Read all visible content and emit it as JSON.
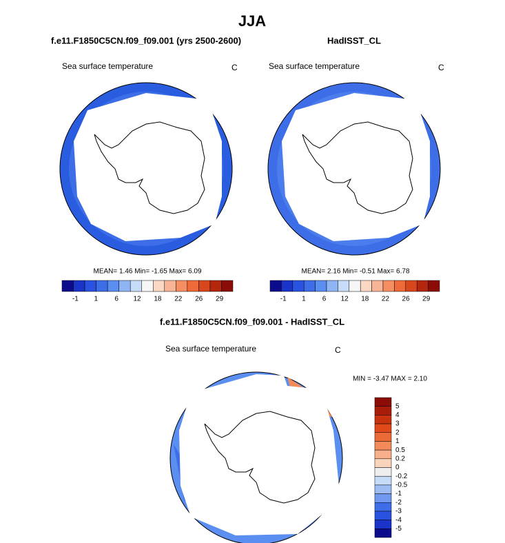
{
  "title": "JJA",
  "panels": [
    {
      "title": "f.e11.F1850C5CN.f09_f09.001 (yrs 2500-2600)",
      "left_label": "Sea surface temperature",
      "right_label": "C",
      "stats": "MEAN=  1.46  Min= -1.65  Max=  6.09"
    },
    {
      "title": "HadISST_CL",
      "left_label": "Sea surface temperature",
      "right_label": "C",
      "stats": "MEAN=  2.16  Min= -0.51  Max=  6.78"
    }
  ],
  "colorbar": {
    "colors": [
      "#0b0b8b",
      "#1a33c8",
      "#2a52e0",
      "#3d6ee8",
      "#5a8ef0",
      "#8fb4f4",
      "#c6dcf8",
      "#f6f6f6",
      "#fbd8c4",
      "#f8b497",
      "#f58f63",
      "#ee6a38",
      "#d8471c",
      "#b5260e",
      "#8b0c06"
    ],
    "labels": [
      "-1",
      "1",
      "6",
      "12",
      "18",
      "22",
      "26",
      "29"
    ]
  },
  "difference": {
    "title": "f.e11.F1850C5CN.f09_f09.001 - HadISST_CL",
    "left_label": "Sea surface temperature",
    "right_label": "C",
    "stats": "MIN =  -3.47 MAX =  2.10",
    "colorbar": {
      "colors": [
        "#8b0c06",
        "#a81c0a",
        "#c8320f",
        "#e04a1a",
        "#ec6a38",
        "#f38a5a",
        "#f7b08a",
        "#fad3bd",
        "#eeeeee",
        "#c6dcf8",
        "#9dbcf4",
        "#6f98ee",
        "#3d6ee8",
        "#2a52e0",
        "#1a33c8",
        "#0b0b8b"
      ],
      "labels": [
        "5",
        "4",
        "3",
        "2",
        "1",
        "0.5",
        "0.2",
        "0",
        "-0.2",
        "-0.5",
        "-1",
        "-2",
        "-3",
        "-4",
        "-5"
      ]
    }
  }
}
